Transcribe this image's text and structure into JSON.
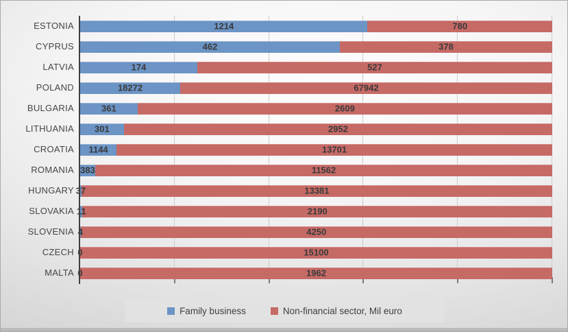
{
  "chart_data": {
    "type": "bar",
    "variant": "horizontal-100%-stacked",
    "title": "",
    "xlabel": "",
    "ylabel": "",
    "grid": true,
    "gridlines_percent": [
      20,
      40,
      60,
      80,
      100
    ],
    "legend_position": "bottom",
    "categories": [
      "ESTONIA",
      "CYPRUS",
      "LATVIA",
      "POLAND",
      "BULGARIA",
      "LITHUANIA",
      "CROATIA",
      "ROMANIA",
      "HUNGARY",
      "SLOVAKIA",
      "SLOVENIA",
      "CZECH",
      "MALTA"
    ],
    "series": [
      {
        "name": "Family business",
        "color": "#6C94C5",
        "values": [
          1214,
          462,
          174,
          18272,
          361,
          301,
          1144,
          383,
          37,
          11,
          4,
          0,
          0
        ]
      },
      {
        "name": "Non-financial sector, Mil euro",
        "color": "#C66A66",
        "values": [
          780,
          378,
          527,
          67942,
          2609,
          2952,
          13701,
          11562,
          13381,
          2190,
          4250,
          15100,
          1962
        ]
      }
    ]
  },
  "colors": {
    "grid": "#cbcbcb",
    "tick": "#7a7a7a",
    "axis": "#3e3e3e",
    "value_label": "#3a3a3a",
    "category_label": "#454545",
    "legend_bg": "#e2e2e2",
    "legend_text": "#3f3f3f"
  }
}
